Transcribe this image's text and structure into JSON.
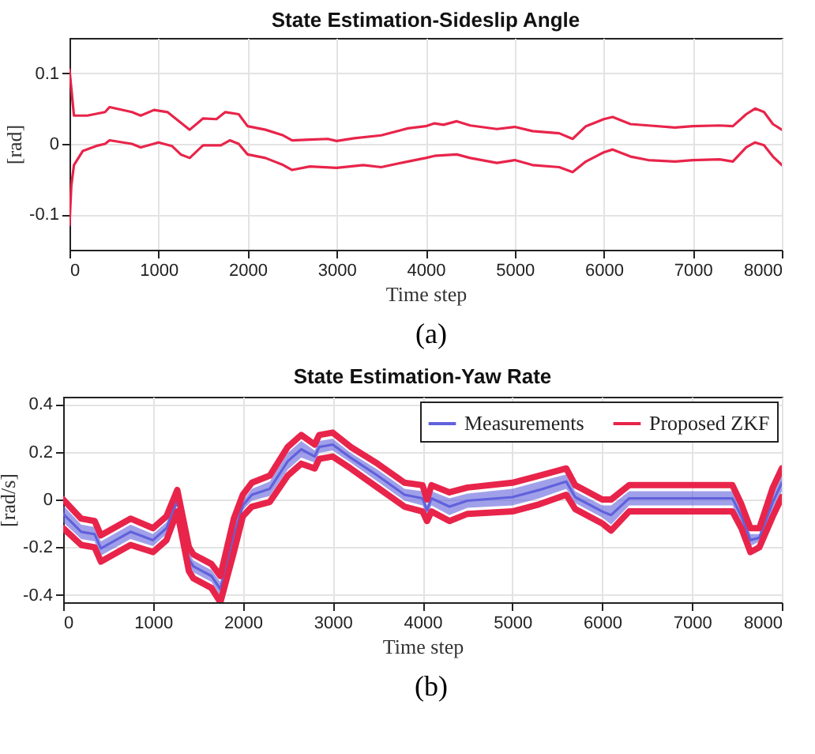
{
  "chart_data": [
    {
      "type": "line",
      "title": "State Estimation-Sideslip Angle",
      "xlabel": "Time step",
      "ylabel": "[rad]",
      "annotations": [
        "(a)"
      ],
      "xlim": [
        0,
        8000
      ],
      "xticks": [
        0,
        1000,
        2000,
        3000,
        4000,
        5000,
        6000,
        7000,
        8000
      ],
      "ylim": [
        -0.15,
        0.15
      ],
      "yticks": [
        -0.1,
        0,
        0.1
      ],
      "grid": true,
      "series": [
        {
          "color": "#e8244a",
          "x": [
            0,
            50,
            200,
            400,
            450,
            700,
            800,
            950,
            1100,
            1250,
            1350,
            1500,
            1650,
            1750,
            1900,
            2000,
            2200,
            2400,
            2500,
            2700,
            2900,
            3000,
            3200,
            3500,
            3800,
            4000,
            4100,
            4200,
            4350,
            4500,
            4800,
            5000,
            5200,
            5500,
            5650,
            5800,
            6000,
            6100,
            6300,
            6500,
            6800,
            7000,
            7300,
            7450,
            7600,
            7700,
            7800,
            7900,
            8000
          ],
          "values": [
            0.105,
            0.04,
            0.04,
            0.045,
            0.052,
            0.045,
            0.04,
            0.048,
            0.045,
            0.03,
            0.02,
            0.036,
            0.035,
            0.045,
            0.042,
            0.025,
            0.02,
            0.012,
            0.005,
            0.006,
            0.007,
            0.004,
            0.008,
            0.012,
            0.022,
            0.025,
            0.029,
            0.027,
            0.032,
            0.026,
            0.021,
            0.024,
            0.018,
            0.015,
            0.007,
            0.025,
            0.035,
            0.038,
            0.028,
            0.026,
            0.023,
            0.025,
            0.026,
            0.025,
            0.042,
            0.05,
            0.045,
            0.028,
            0.02
          ]
        },
        {
          "color": "#e8244a",
          "x": [
            0,
            20,
            50,
            150,
            300,
            400,
            450,
            700,
            800,
            1000,
            1150,
            1250,
            1350,
            1500,
            1700,
            1800,
            1900,
            2000,
            2200,
            2400,
            2500,
            2700,
            3000,
            3300,
            3500,
            3800,
            4000,
            4100,
            4350,
            4500,
            4800,
            5000,
            5200,
            5500,
            5650,
            5800,
            6000,
            6100,
            6300,
            6500,
            6800,
            7000,
            7300,
            7450,
            7600,
            7700,
            7800,
            7900,
            8000
          ],
          "values": [
            -0.115,
            -0.06,
            -0.03,
            -0.01,
            -0.003,
            0.0,
            0.005,
            0.0,
            -0.005,
            0.002,
            -0.003,
            -0.015,
            -0.02,
            -0.002,
            -0.002,
            0.005,
            0.0,
            -0.015,
            -0.02,
            -0.03,
            -0.037,
            -0.032,
            -0.034,
            -0.03,
            -0.033,
            -0.025,
            -0.02,
            -0.017,
            -0.015,
            -0.02,
            -0.027,
            -0.023,
            -0.03,
            -0.033,
            -0.04,
            -0.025,
            -0.012,
            -0.008,
            -0.018,
            -0.023,
            -0.025,
            -0.023,
            -0.022,
            -0.025,
            -0.005,
            0.002,
            -0.002,
            -0.018,
            -0.03
          ]
        }
      ]
    },
    {
      "type": "line",
      "title": "State Estimation-Yaw Rate",
      "xlabel": "Time step",
      "ylabel": "[rad/s]",
      "annotations": [
        "(b)"
      ],
      "xlim": [
        0,
        8000
      ],
      "xticks": [
        0,
        1000,
        2000,
        3000,
        4000,
        5000,
        6000,
        7000,
        8000
      ],
      "ylim": [
        -0.43,
        0.43
      ],
      "yticks": [
        -0.4,
        -0.2,
        0,
        0.2,
        0.4
      ],
      "grid": true,
      "legend": "top right",
      "x": [
        0,
        200,
        350,
        420,
        750,
        1000,
        1150,
        1270,
        1400,
        1450,
        1650,
        1750,
        1900,
        2000,
        2100,
        2300,
        2500,
        2650,
        2800,
        2850,
        3000,
        3200,
        3500,
        3800,
        4000,
        4050,
        4100,
        4300,
        4500,
        5000,
        5300,
        5600,
        5700,
        6000,
        6100,
        6300,
        7000,
        7450,
        7550,
        7650,
        7750,
        7900,
        8000
      ],
      "series": [
        {
          "name": "Measurements",
          "color": "#6161dc",
          "values": [
            -0.06,
            -0.135,
            -0.145,
            -0.205,
            -0.135,
            -0.17,
            -0.12,
            -0.005,
            -0.25,
            -0.28,
            -0.32,
            -0.375,
            -0.15,
            -0.025,
            0.02,
            0.045,
            0.16,
            0.21,
            0.18,
            0.22,
            0.23,
            0.175,
            0.1,
            0.02,
            0.005,
            -0.045,
            0.005,
            -0.03,
            -0.005,
            0.01,
            0.04,
            0.075,
            0.01,
            -0.05,
            -0.065,
            0.005,
            0.005,
            0.005,
            -0.07,
            -0.17,
            -0.16,
            -0.01,
            0.07
          ],
          "lower": [
            -0.095,
            -0.165,
            -0.175,
            -0.235,
            -0.165,
            -0.195,
            -0.145,
            -0.025,
            -0.275,
            -0.305,
            -0.345,
            -0.405,
            -0.195,
            -0.045,
            -0.005,
            0.015,
            0.125,
            0.175,
            0.155,
            0.195,
            0.205,
            0.155,
            0.075,
            -0.005,
            -0.025,
            -0.065,
            -0.025,
            -0.065,
            -0.035,
            -0.025,
            0.005,
            0.045,
            -0.015,
            -0.075,
            -0.105,
            -0.025,
            -0.025,
            -0.025,
            -0.095,
            -0.195,
            -0.175,
            -0.045,
            0.035
          ],
          "upper": [
            -0.025,
            -0.105,
            -0.115,
            -0.175,
            -0.105,
            -0.145,
            -0.095,
            0.015,
            -0.225,
            -0.255,
            -0.295,
            -0.345,
            -0.105,
            -0.005,
            0.045,
            0.075,
            0.195,
            0.245,
            0.205,
            0.245,
            0.255,
            0.195,
            0.125,
            0.045,
            0.035,
            -0.025,
            0.035,
            0.005,
            0.025,
            0.045,
            0.075,
            0.105,
            0.035,
            -0.025,
            -0.025,
            0.035,
            0.035,
            0.035,
            -0.045,
            -0.145,
            -0.145,
            0.025,
            0.105
          ]
        },
        {
          "name": "Proposed ZKF",
          "color": "#e8244a",
          "values": [
            0,
            -0.08,
            -0.09,
            -0.15,
            -0.08,
            -0.12,
            -0.07,
            0.04,
            -0.2,
            -0.23,
            -0.27,
            -0.32,
            -0.08,
            0.02,
            0.07,
            0.1,
            0.22,
            0.27,
            0.23,
            0.27,
            0.28,
            0.22,
            0.15,
            0.07,
            0.06,
            0,
            0.06,
            0.03,
            0.05,
            0.07,
            0.1,
            0.13,
            0.06,
            0,
            0,
            0.06,
            0.06,
            0.06,
            -0.02,
            -0.12,
            -0.12,
            0.05,
            0.13
          ]
        },
        {
          "color": "#e8244a",
          "values": [
            -0.12,
            -0.19,
            -0.2,
            -0.26,
            -0.19,
            -0.22,
            -0.17,
            -0.05,
            -0.3,
            -0.33,
            -0.37,
            -0.43,
            -0.22,
            -0.07,
            -0.03,
            -0.01,
            0.1,
            0.15,
            0.13,
            0.17,
            0.18,
            0.13,
            0.05,
            -0.03,
            -0.05,
            -0.09,
            -0.05,
            -0.09,
            -0.06,
            -0.05,
            -0.02,
            0.02,
            -0.04,
            -0.1,
            -0.13,
            -0.05,
            -0.05,
            -0.05,
            -0.12,
            -0.22,
            -0.2,
            -0.07,
            0.01
          ]
        }
      ]
    }
  ]
}
